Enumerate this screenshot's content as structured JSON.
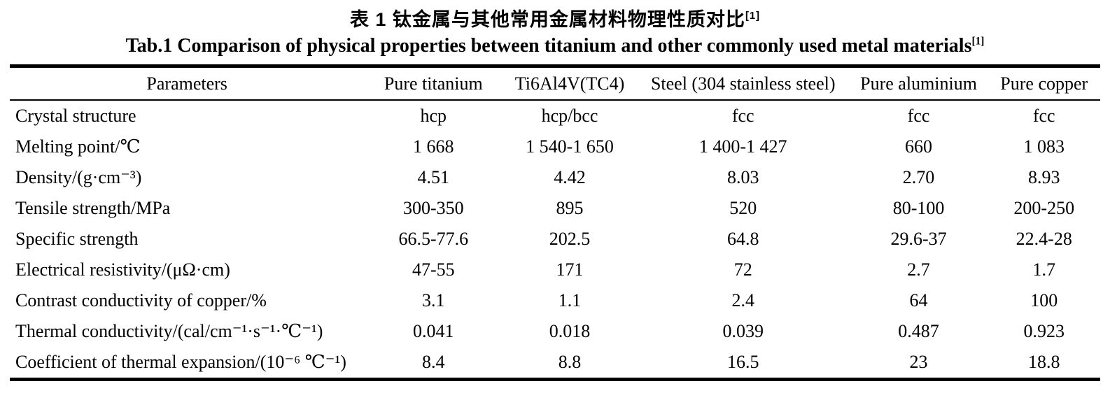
{
  "titles": {
    "zh": "表 1  钛金属与其他常用金属材料物理性质对比",
    "zh_ref": "[1]",
    "en": "Tab.1 Comparison of physical properties between titanium and other commonly used metal materials",
    "en_ref": "[1]"
  },
  "chart_data": {
    "type": "table",
    "title_zh": "表 1 钛金属与其他常用金属材料物理性质对比",
    "title": "Tab.1 Comparison of physical properties between titanium and other commonly used metal materials",
    "citation": "[1]",
    "columns": [
      "Parameters",
      "Pure titanium",
      "Ti6Al4V(TC4)",
      "Steel (304 stainless steel)",
      "Pure aluminium",
      "Pure copper"
    ],
    "rows": [
      [
        "Crystal structure",
        "hcp",
        "hcp/bcc",
        "fcc",
        "fcc",
        "fcc"
      ],
      [
        "Melting point/℃",
        "1 668",
        "1 540-1 650",
        "1 400-1 427",
        "660",
        "1 083"
      ],
      [
        "Density/(g·cm⁻³)",
        "4.51",
        "4.42",
        "8.03",
        "2.70",
        "8.93"
      ],
      [
        "Tensile strength/MPa",
        "300-350",
        "895",
        "520",
        "80-100",
        "200-250"
      ],
      [
        "Specific strength",
        "66.5-77.6",
        "202.5",
        "64.8",
        "29.6-37",
        "22.4-28"
      ],
      [
        "Electrical resistivity/(μΩ·cm)",
        "47-55",
        "171",
        "72",
        "2.7",
        "1.7"
      ],
      [
        "Contrast conductivity of copper/%",
        "3.1",
        "1.1",
        "2.4",
        "64",
        "100"
      ],
      [
        "Thermal conductivity/(cal/cm⁻¹·s⁻¹·℃⁻¹)",
        "0.041",
        "0.018",
        "0.039",
        "0.487",
        "0.923"
      ],
      [
        "Coefficient of thermal expansion/(10⁻⁶ ℃⁻¹)",
        "8.4",
        "8.8",
        "16.5",
        "23",
        "18.8"
      ]
    ]
  },
  "colors": {
    "background": "#ffffff",
    "text": "#000000",
    "rule": "#000000"
  }
}
